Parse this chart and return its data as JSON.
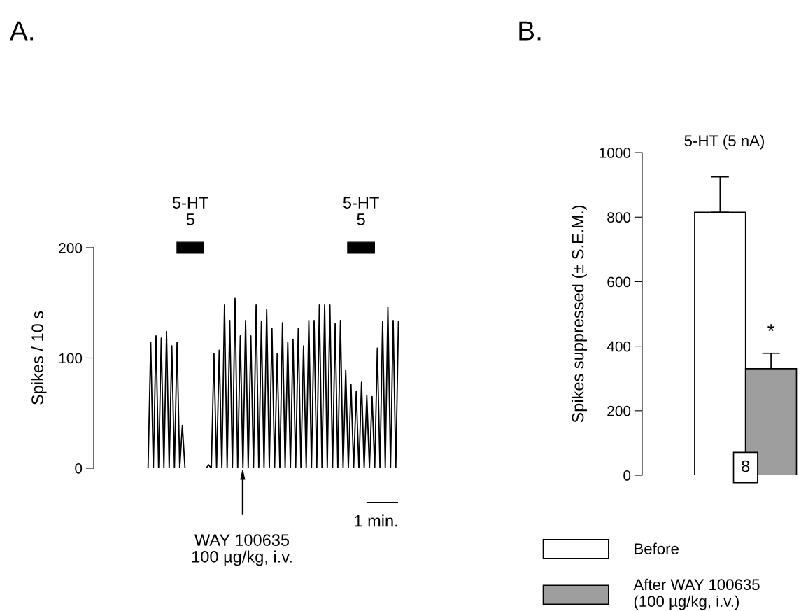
{
  "chart_data": [
    {
      "type": "line",
      "title": "A.",
      "ylabel": "Spikes / 10 s",
      "color": "#000000",
      "ylim": [
        0,
        200
      ],
      "yticks": [
        0,
        100,
        200
      ],
      "tick_labels": "y",
      "categories": [
        null,
        null,
        null,
        null,
        null,
        null,
        null,
        null,
        null,
        null,
        null,
        null,
        null,
        null,
        null,
        null,
        null,
        null,
        null,
        null,
        null,
        null,
        null,
        null,
        null,
        null,
        null,
        null,
        null,
        null,
        null,
        null,
        null,
        null,
        null,
        null,
        null,
        null,
        null,
        null,
        null,
        null,
        null,
        null,
        null,
        null,
        null,
        null,
        null,
        null,
        null,
        null,
        null,
        null,
        null,
        null,
        null,
        null,
        null,
        null,
        null,
        null,
        null,
        null,
        null,
        null,
        null,
        null,
        null,
        null,
        null,
        null,
        null,
        null,
        null,
        null,
        null,
        null,
        null,
        null,
        null,
        null,
        null,
        null,
        null,
        null,
        null,
        null,
        null,
        null,
        null,
        null,
        null,
        null,
        null,
        null
      ],
      "values": [
        0,
        114,
        0,
        120,
        0,
        118,
        0,
        124,
        0,
        111,
        0,
        114,
        0,
        39,
        0,
        0,
        0,
        0,
        0,
        0,
        0,
        0,
        0,
        3,
        0,
        104,
        0,
        107,
        0,
        148,
        0,
        134,
        0,
        154,
        0,
        120,
        0,
        134,
        0,
        120,
        0,
        148,
        0,
        133,
        0,
        144,
        0,
        127,
        0,
        104,
        0,
        132,
        0,
        114,
        0,
        117,
        0,
        127,
        0,
        111,
        0,
        134,
        0,
        134,
        0,
        148,
        0,
        148,
        0,
        148,
        0,
        131,
        0,
        134,
        0,
        89,
        0,
        76,
        0,
        70,
        0,
        78,
        0,
        66,
        0,
        65,
        0,
        109,
        0,
        133,
        0,
        146,
        0,
        134,
        0,
        133
      ],
      "annotations": [
        "5-HT\n5",
        "5-HT\n5",
        "WAY 100635\n100 µg/kg, i.v.",
        "1 min."
      ]
    },
    {
      "type": "bar",
      "title": "B.",
      "subtitle": "5-HT (5 nA)",
      "ylabel": "Spikes suppressed (± S.E.M.)",
      "categories": [
        null
      ],
      "ylim": [
        0,
        1000
      ],
      "yticks": [
        0,
        200,
        400,
        600,
        800,
        1000
      ],
      "tick_labels": "y",
      "legend": "bottom",
      "series": [
        {
          "name": "Before",
          "color": "#ffffff",
          "values": [
            815
          ],
          "errors": [
            [
              815,
              925
            ]
          ]
        },
        {
          "name": "After WAY 100635\n(100 µg/kg, i.v.)",
          "color": "#9e9e9e",
          "values": [
            330
          ],
          "errors": [
            [
              330,
              378
            ]
          ]
        }
      ],
      "annotations": [
        "*",
        "8"
      ]
    }
  ]
}
